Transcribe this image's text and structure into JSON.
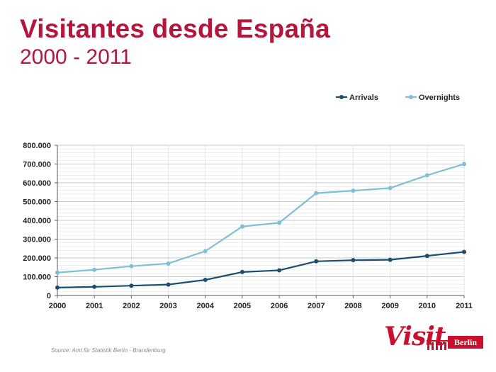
{
  "slide": {
    "title": "Visitantes desde España",
    "subtitle": "2000 - 2011",
    "source": "Source: Amt für Statistik Berlin - Brandenburg",
    "logo_script": "Visit",
    "logo_badge": "Berlin"
  },
  "colors": {
    "title": "#b5163b",
    "arrivals": "#1b4f72",
    "overnights": "#7fbfd6",
    "logo": "#c8102e"
  },
  "chart_data": {
    "type": "line",
    "title": "",
    "xlabel": "",
    "ylabel": "",
    "categories": [
      "2000",
      "2001",
      "2002",
      "2003",
      "2004",
      "2005",
      "2006",
      "2007",
      "2008",
      "2009",
      "2010",
      "2011"
    ],
    "ylim": [
      0,
      800000
    ],
    "yticks": [
      0,
      100000,
      200000,
      300000,
      400000,
      500000,
      600000,
      700000,
      800000
    ],
    "ytick_labels": [
      "0",
      "100.000",
      "200.000",
      "300.000",
      "400.000",
      "500.000",
      "600.000",
      "700.000",
      "800.000"
    ],
    "grid": true,
    "legend": "top-right",
    "series": [
      {
        "name": "Arrivals",
        "color": "#1b4f72",
        "values": [
          42000,
          46000,
          52000,
          58000,
          83000,
          125000,
          134000,
          182000,
          188000,
          190000,
          211000,
          232000
        ]
      },
      {
        "name": "Overnights",
        "color": "#7fbfd6",
        "values": [
          122000,
          137000,
          156000,
          170000,
          236000,
          367000,
          387000,
          545000,
          558000,
          572000,
          640000,
          700000
        ]
      }
    ]
  }
}
